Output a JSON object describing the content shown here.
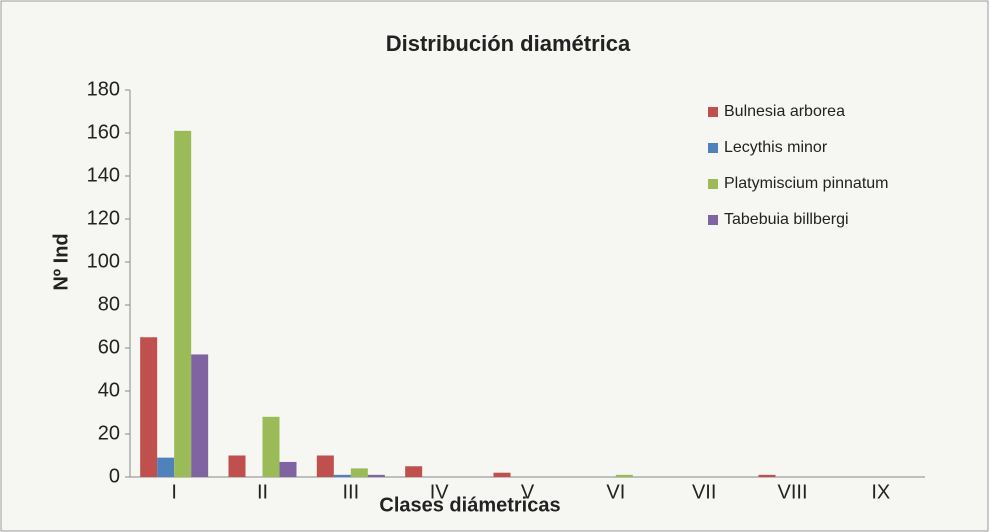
{
  "chart_data": {
    "type": "bar",
    "title": "Distribución diamétrica",
    "x_label": "Clases diámetricas",
    "y_label": "Nº Ind",
    "categories": [
      "I",
      "II",
      "III",
      "IV",
      "V",
      "VI",
      "VII",
      "VIII",
      "IX"
    ],
    "series": [
      {
        "name": "Bulnesia arborea",
        "color": "#c0504d",
        "values": [
          65,
          10,
          10,
          5,
          2,
          0,
          0,
          1,
          0
        ]
      },
      {
        "name": "Lecythis minor",
        "color": "#4f81bd",
        "values": [
          9,
          0,
          1,
          0,
          0,
          0,
          0,
          0,
          0
        ]
      },
      {
        "name": "Platymiscium pinnatum",
        "color": "#9bbb59",
        "values": [
          161,
          28,
          4,
          0,
          0,
          1,
          0,
          0,
          0
        ]
      },
      {
        "name": "Tabebuia billbergi",
        "color": "#8064a2",
        "values": [
          57,
          7,
          1,
          0,
          0,
          0,
          0,
          0,
          0
        ]
      }
    ],
    "ylim": [
      0,
      180
    ],
    "yticks": [
      0,
      20,
      40,
      60,
      80,
      100,
      120,
      140,
      160,
      180
    ],
    "grid": false,
    "legend": "right"
  }
}
